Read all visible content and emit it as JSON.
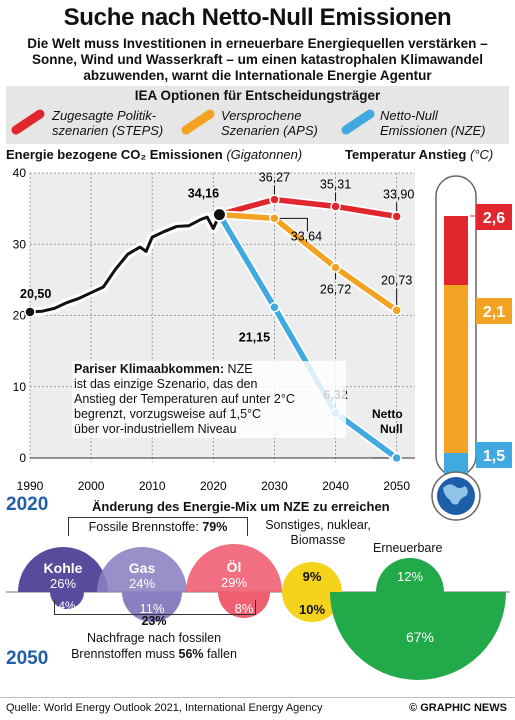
{
  "title": "Suche nach Netto-Null Emissionen",
  "subtitle_lines": [
    "Die Welt muss Investitionen in erneuerbare Energiequellen verstärken –",
    "Sonne, Wind und Wasserkraft – um einen katastrophalen Klimawandel",
    "abzuwenden, warnt die Internationale Energie Agentur"
  ],
  "legend": {
    "heading": "IEA Optionen für Entscheidungsträger",
    "items": [
      {
        "line1": "Zugesagte Politik-",
        "line2": "szenarien (STEPS)",
        "color": "#e2262e"
      },
      {
        "line1": "Versprochene",
        "line2": "Szenarien (APS)",
        "color": "#f4a223"
      },
      {
        "line1": "Netto-Null",
        "line2": "Emissionen (NZE)",
        "color": "#3fa9e0"
      }
    ]
  },
  "chart_axis_title": "Energie bezogene CO₂ Emissionen",
  "chart_axis_unit": "(Gigatonnen)",
  "temp_title": "Temperatur Anstieg",
  "temp_unit": "(°C)",
  "chart_data": {
    "type": "line",
    "x_ticks": [
      1990,
      2000,
      2010,
      2020,
      2030,
      2040,
      2050
    ],
    "y_ticks": [
      0,
      10,
      20,
      30,
      40
    ],
    "xlim": [
      1990,
      2053
    ],
    "ylim": [
      0,
      40
    ],
    "grid": true,
    "series": [
      {
        "key": "history",
        "color": "#111111",
        "points": [
          [
            1990,
            20.5
          ],
          [
            1992,
            20.6
          ],
          [
            1994,
            21.0
          ],
          [
            1996,
            21.8
          ],
          [
            1998,
            22.4
          ],
          [
            2000,
            23.2
          ],
          [
            2002,
            24.0
          ],
          [
            2004,
            26.5
          ],
          [
            2006,
            28.6
          ],
          [
            2008,
            29.6
          ],
          [
            2009,
            29.0
          ],
          [
            2010,
            31.0
          ],
          [
            2012,
            31.8
          ],
          [
            2014,
            32.5
          ],
          [
            2016,
            32.6
          ],
          [
            2018,
            33.5
          ],
          [
            2019,
            33.8
          ],
          [
            2020,
            32.2
          ],
          [
            2021,
            34.16
          ]
        ]
      },
      {
        "key": "steps",
        "color": "#e2262e",
        "points": [
          [
            2021,
            34.16
          ],
          [
            2030,
            36.27
          ],
          [
            2040,
            35.31
          ],
          [
            2050,
            33.9
          ]
        ]
      },
      {
        "key": "aps",
        "color": "#f4a223",
        "points": [
          [
            2021,
            34.16
          ],
          [
            2030,
            33.64
          ],
          [
            2040,
            26.72
          ],
          [
            2050,
            20.73
          ]
        ]
      },
      {
        "key": "nze",
        "color": "#3fa9e0",
        "points": [
          [
            2021,
            34.16
          ],
          [
            2030,
            21.15
          ],
          [
            2040,
            6.32
          ],
          [
            2050,
            0
          ]
        ]
      }
    ],
    "labels": [
      {
        "text": "20,50",
        "x": 1990,
        "y": 20.5,
        "bold": true
      },
      {
        "text": "34,16",
        "x": 2021,
        "y": 34.16,
        "bold": true
      },
      {
        "text": "36,27",
        "x": 2030,
        "y": 36.27,
        "bold": false
      },
      {
        "text": "35,31",
        "x": 2040,
        "y": 35.31,
        "bold": false
      },
      {
        "text": "33,90",
        "x": 2050,
        "y": 33.9,
        "bold": false
      },
      {
        "text": "33,64",
        "x": 2030,
        "y": 33.64,
        "bold": false
      },
      {
        "text": "26,72",
        "x": 2040,
        "y": 26.72,
        "bold": false
      },
      {
        "text": "20,73",
        "x": 2050,
        "y": 20.73,
        "bold": false
      },
      {
        "text": "21,15",
        "x": 2030,
        "y": 21.15,
        "bold": true
      },
      {
        "text": "6,32",
        "x": 2040,
        "y": 6.32,
        "bold": true
      }
    ],
    "netto_null": [
      "Netto",
      "Null"
    ]
  },
  "paris": {
    "heading": "Pariser Klimaabkommen:",
    "heading_rest": " NZE",
    "lines": [
      "ist das einzige Szenario, das den",
      "Anstieg der Temperaturen auf unter 2°C",
      "begrenzt, vorzugsweise auf 1,5°C",
      "über vor-industriellem Niveau"
    ]
  },
  "thermometer": {
    "segments": [
      {
        "label": "2,6",
        "color": "#e2262e"
      },
      {
        "label": "2,1",
        "color": "#f4a223"
      },
      {
        "label": "1,5",
        "color": "#3fa9e0"
      }
    ]
  },
  "mix": {
    "year_start": "2020",
    "year_end": "2050",
    "heading": "Änderung des Energie-Mix um NZE zu erreichen",
    "fossil_label": "Fossile Brennstoffe:",
    "fossil_pct": "79%",
    "sonstiges_lines": [
      "Sonstiges, nuklear,",
      "Biomasse"
    ],
    "erneuerbare": "Erneuerbare",
    "items": [
      {
        "name": "Kohle",
        "v2020": "26%",
        "v2050": "4%",
        "color": "#5a4a9c"
      },
      {
        "name": "Gas",
        "v2020": "24%",
        "v2050": "11%",
        "color": "#8b7fc2"
      },
      {
        "name": "Öl",
        "v2020": "29%",
        "v2050": "8%",
        "color": "#ef5f72"
      },
      {
        "name": "",
        "v2020": "9%",
        "v2050": "10%",
        "color": "#f5d21b"
      },
      {
        "name": "",
        "v2020": "12%",
        "v2050": "67%",
        "color": "#22a94a"
      }
    ],
    "fossil_2050_pct": "23%",
    "note_line1": "Nachfrage nach fossilen",
    "note_line2_pre": "Brennstoffen muss ",
    "note_line2_bold": "56%",
    "note_line2_post": " fallen"
  },
  "footer": {
    "source": "Quelle: World Energy Outlook 2021, International Energy Agency",
    "copyright": "© GRAPHIC NEWS"
  }
}
